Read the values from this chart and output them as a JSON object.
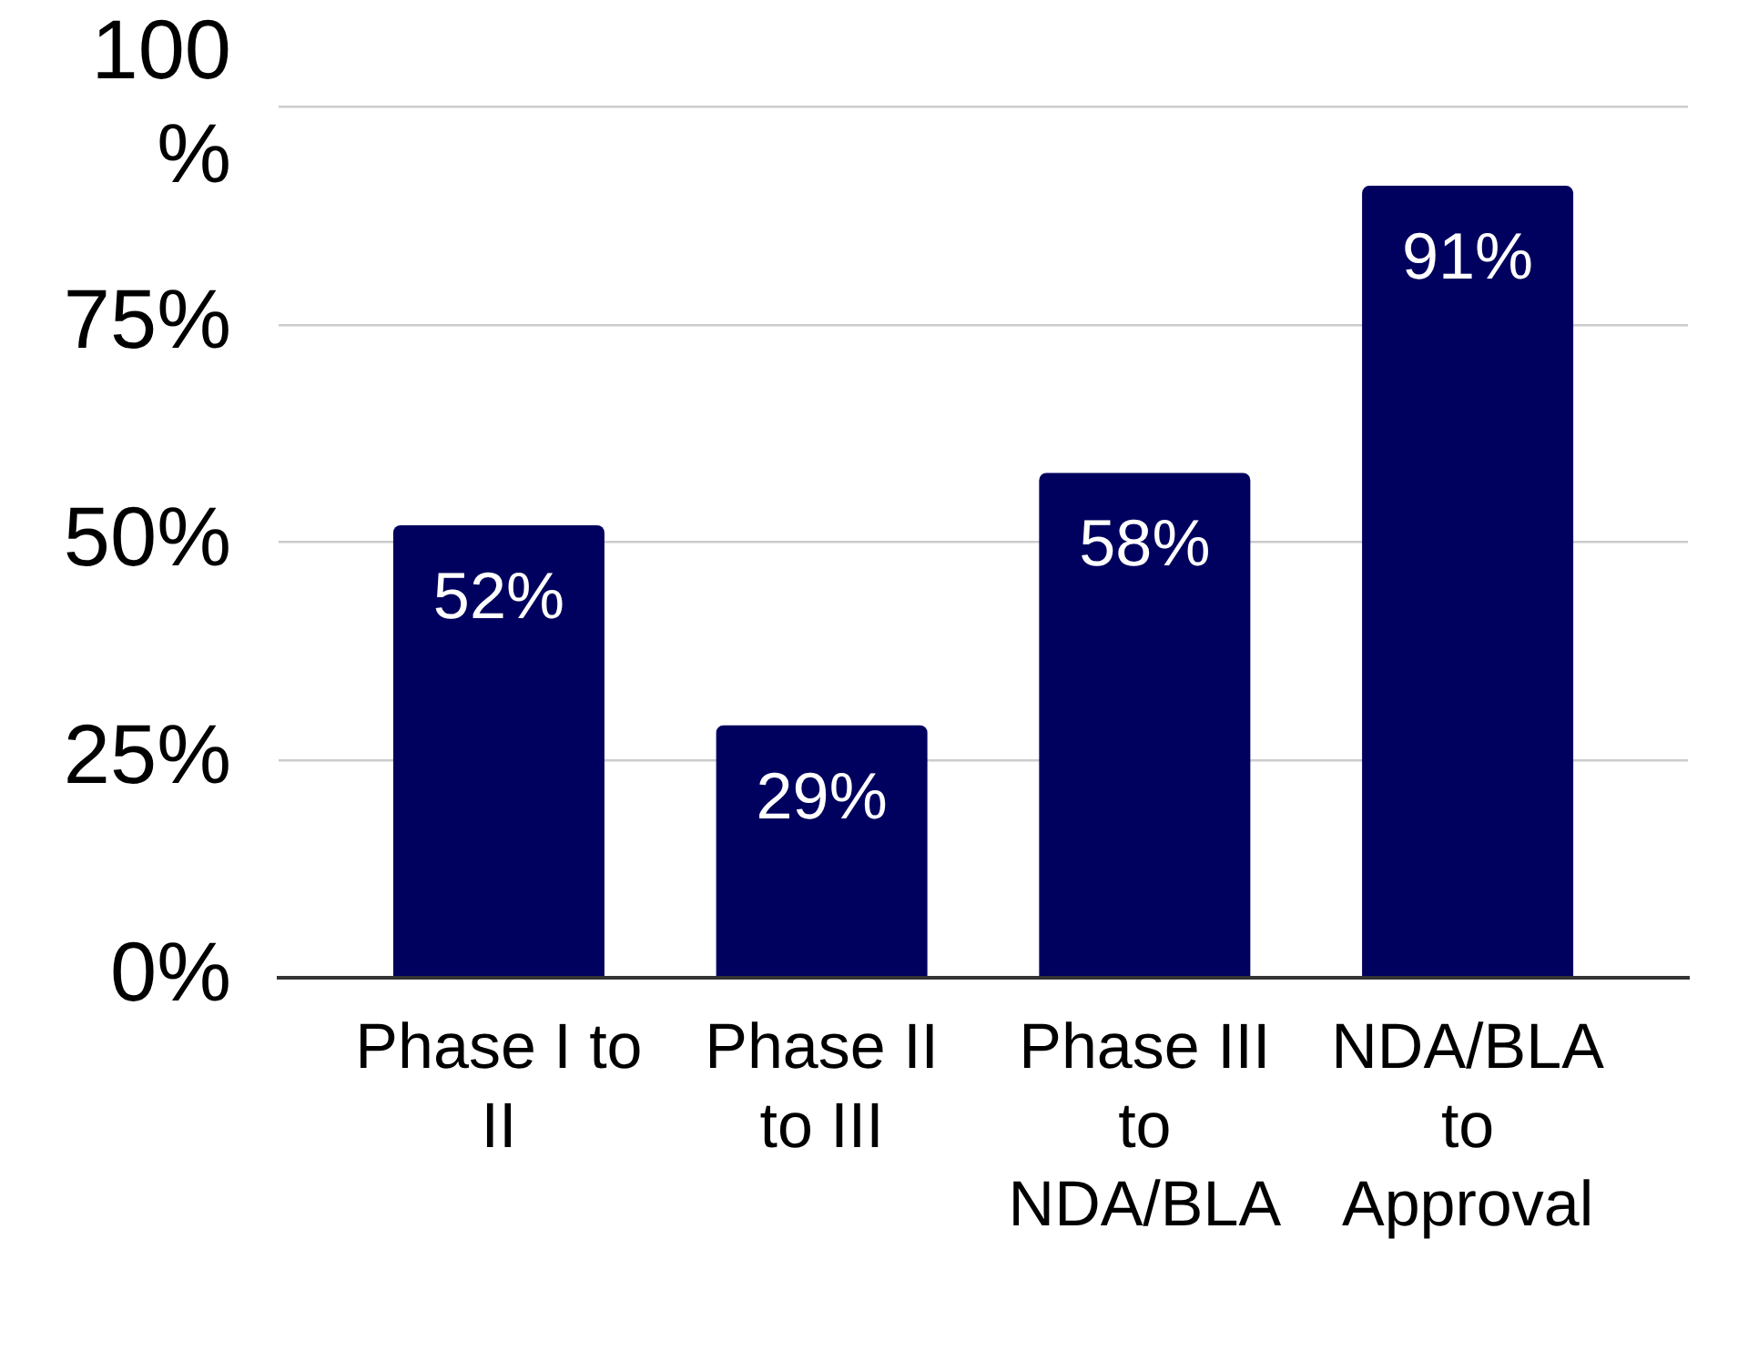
{
  "chart_data": {
    "type": "bar",
    "categories": [
      "Phase I to II",
      "Phase II to III",
      "Phase III to NDA/BLA",
      "NDA/BLA to Approval"
    ],
    "values": [
      52,
      29,
      58,
      91
    ],
    "color": "#00005e",
    "value_labels": [
      "52%",
      "29%",
      "58%",
      "91%"
    ],
    "ylim": [
      0,
      100
    ],
    "yticks": [
      {
        "value": 0,
        "label": "0%"
      },
      {
        "value": 25,
        "label": "25%"
      },
      {
        "value": 50,
        "label": "50%"
      },
      {
        "value": 75,
        "label": "75%"
      },
      {
        "value": 100,
        "label": "100%"
      }
    ],
    "grid": "y"
  }
}
